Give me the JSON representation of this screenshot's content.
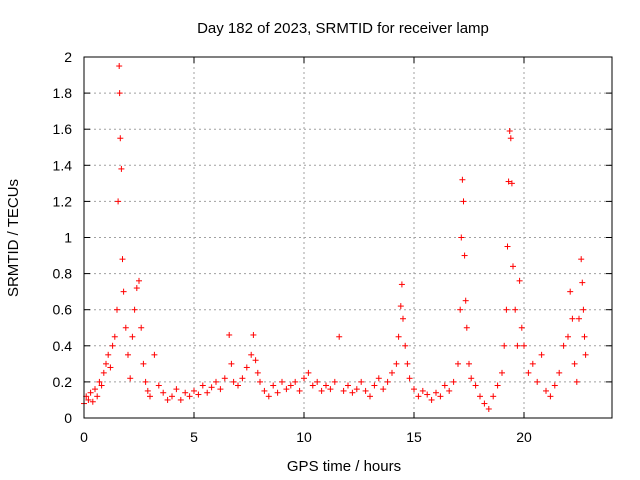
{
  "chart_data": {
    "type": "scatter",
    "title": "Day 182 of 2023, SRMTID for receiver lamp",
    "xlabel": "GPS time / hours",
    "ylabel": "SRMTID / TECUs",
    "xlim": [
      0,
      24
    ],
    "ylim": [
      0,
      2
    ],
    "x_ticks": [
      0,
      5,
      10,
      15,
      20
    ],
    "y_ticks": [
      0,
      0.2,
      0.4,
      0.6,
      0.8,
      1,
      1.2,
      1.4,
      1.6,
      1.8,
      2
    ],
    "x_tick_labels": [
      "0",
      "5",
      "10",
      "15",
      "20"
    ],
    "y_tick_labels": [
      "0",
      "0.2",
      "0.4",
      "0.6",
      "0.8",
      "1",
      "1.2",
      "1.4",
      "1.6",
      "1.8",
      "2"
    ],
    "grid": true,
    "marker": "+",
    "color": "#ff0000",
    "series": [
      {
        "name": "SRMTID",
        "x": [
          0.0,
          0.1,
          0.2,
          0.3,
          0.4,
          0.5,
          0.6,
          0.7,
          0.8,
          0.9,
          1.0,
          1.1,
          1.2,
          1.3,
          1.4,
          1.5,
          1.55,
          1.6,
          1.62,
          1.65,
          1.7,
          1.75,
          1.8,
          1.9,
          2.0,
          2.1,
          2.2,
          2.3,
          2.4,
          2.5,
          2.6,
          2.7,
          2.8,
          2.9,
          3.0,
          3.2,
          3.4,
          3.6,
          3.8,
          4.0,
          4.2,
          4.4,
          4.6,
          4.8,
          5.0,
          5.2,
          5.4,
          5.6,
          5.8,
          6.0,
          6.2,
          6.4,
          6.6,
          6.7,
          6.8,
          7.0,
          7.2,
          7.4,
          7.6,
          7.7,
          7.8,
          7.9,
          8.0,
          8.2,
          8.4,
          8.6,
          8.8,
          9.0,
          9.2,
          9.4,
          9.6,
          9.8,
          10.0,
          10.2,
          10.4,
          10.6,
          10.8,
          11.0,
          11.2,
          11.4,
          11.6,
          11.8,
          12.0,
          12.2,
          12.4,
          12.6,
          12.8,
          13.0,
          13.2,
          13.4,
          13.6,
          13.8,
          14.0,
          14.2,
          14.3,
          14.4,
          14.45,
          14.5,
          14.6,
          14.7,
          14.8,
          15.0,
          15.2,
          15.4,
          15.6,
          15.8,
          16.0,
          16.2,
          16.4,
          16.6,
          16.8,
          17.0,
          17.1,
          17.15,
          17.2,
          17.25,
          17.3,
          17.35,
          17.4,
          17.5,
          17.6,
          17.8,
          18.0,
          18.2,
          18.4,
          18.6,
          18.8,
          19.0,
          19.1,
          19.2,
          19.25,
          19.3,
          19.35,
          19.4,
          19.45,
          19.5,
          19.6,
          19.7,
          19.8,
          19.9,
          20.0,
          20.2,
          20.4,
          20.6,
          20.8,
          21.0,
          21.2,
          21.4,
          21.6,
          21.8,
          22.0,
          22.1,
          22.2,
          22.3,
          22.4,
          22.5,
          22.6,
          22.65,
          22.7,
          22.75,
          22.8
        ],
        "y": [
          0.08,
          0.12,
          0.1,
          0.14,
          0.09,
          0.16,
          0.12,
          0.2,
          0.18,
          0.25,
          0.3,
          0.35,
          0.28,
          0.4,
          0.45,
          0.6,
          1.2,
          1.95,
          1.8,
          1.55,
          1.38,
          0.88,
          0.7,
          0.5,
          0.35,
          0.22,
          0.45,
          0.6,
          0.72,
          0.76,
          0.5,
          0.3,
          0.2,
          0.15,
          0.12,
          0.35,
          0.18,
          0.14,
          0.1,
          0.12,
          0.16,
          0.1,
          0.14,
          0.12,
          0.15,
          0.13,
          0.18,
          0.14,
          0.17,
          0.2,
          0.16,
          0.22,
          0.46,
          0.3,
          0.2,
          0.18,
          0.22,
          0.28,
          0.35,
          0.46,
          0.32,
          0.25,
          0.2,
          0.15,
          0.12,
          0.18,
          0.14,
          0.2,
          0.16,
          0.18,
          0.2,
          0.15,
          0.22,
          0.25,
          0.18,
          0.2,
          0.15,
          0.18,
          0.16,
          0.2,
          0.45,
          0.15,
          0.18,
          0.14,
          0.16,
          0.2,
          0.15,
          0.12,
          0.18,
          0.22,
          0.16,
          0.2,
          0.25,
          0.3,
          0.45,
          0.62,
          0.74,
          0.55,
          0.4,
          0.3,
          0.22,
          0.16,
          0.12,
          0.15,
          0.13,
          0.1,
          0.14,
          0.12,
          0.18,
          0.15,
          0.2,
          0.3,
          0.6,
          1.0,
          1.32,
          1.2,
          0.9,
          0.65,
          0.5,
          0.3,
          0.22,
          0.18,
          0.12,
          0.08,
          0.05,
          0.12,
          0.18,
          0.25,
          0.4,
          0.6,
          0.95,
          1.31,
          1.59,
          1.55,
          1.3,
          0.84,
          0.6,
          0.4,
          0.76,
          0.5,
          0.4,
          0.25,
          0.3,
          0.2,
          0.35,
          0.15,
          0.12,
          0.18,
          0.25,
          0.4,
          0.45,
          0.7,
          0.55,
          0.3,
          0.2,
          0.55,
          0.88,
          0.75,
          0.6,
          0.45,
          0.35
        ]
      }
    ]
  }
}
